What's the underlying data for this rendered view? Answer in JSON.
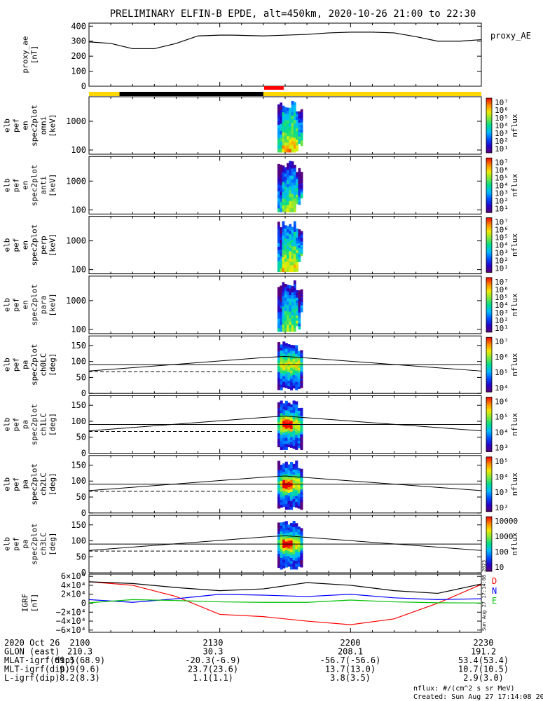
{
  "title": "PRELIMINARY ELFIN-B EPDE, alt=450km, 2020-10-26 21:00 to 22:30",
  "colors": {
    "axis": "#000000",
    "orbit_bar_yellow": "#ffd700",
    "orbit_bar_black": "#000000",
    "science_bar_red": "#ff0000",
    "ae_line": "#000000",
    "igrf_d": "#ff0000",
    "igrf_n": "#0000ff",
    "igrf_e": "#00c000",
    "igrf_total": "#000000"
  },
  "chart_data": [
    {
      "id": "proxy_ae",
      "type": "line",
      "ylabel": [
        "proxy_ae",
        "[nT]"
      ],
      "legend": "proxy_AE",
      "yticks": [
        "400",
        "300",
        "200",
        "100",
        "0"
      ],
      "ylim": [
        0,
        420
      ],
      "x_minutes": [
        0,
        5,
        10,
        15,
        20,
        25,
        30,
        33,
        40,
        50,
        55,
        60,
        65,
        70,
        75,
        80,
        85,
        90
      ],
      "values": [
        295,
        285,
        250,
        250,
        285,
        335,
        340,
        340,
        335,
        345,
        355,
        360,
        360,
        355,
        330,
        300,
        300,
        310
      ]
    },
    {
      "id": "orbit_bar",
      "type": "bar",
      "segments": [
        {
          "from": 0,
          "to": 7,
          "color": "yellow"
        },
        {
          "from": 7,
          "to": 40,
          "color": "black"
        },
        {
          "from": 40,
          "to": 90,
          "color": "yellow"
        }
      ],
      "science_segments": [
        {
          "from": 40,
          "to": 44.5
        }
      ]
    },
    {
      "id": "en_omni",
      "type": "heatmap",
      "ylabel": [
        "elb",
        "pef",
        "en",
        "spec2plot",
        "omni",
        "[keV]"
      ],
      "yticks": [
        "1000",
        "100"
      ],
      "ylog": true,
      "colorbar_label": "nflux",
      "colorbar_ticks": [
        "10⁷",
        "10⁶",
        "10⁵",
        "10⁴",
        "10³",
        "10²",
        "10¹"
      ]
    },
    {
      "id": "en_anti",
      "type": "heatmap",
      "ylabel": [
        "elb",
        "pef",
        "en",
        "spec2plot",
        "anti",
        "[keV]"
      ],
      "yticks": [
        "1000",
        "100"
      ],
      "ylog": true,
      "colorbar_label": "nflux",
      "colorbar_ticks": [
        "10⁷",
        "10⁶",
        "10⁵",
        "10⁴",
        "10³",
        "10²",
        "10¹"
      ]
    },
    {
      "id": "en_perp",
      "type": "heatmap",
      "ylabel": [
        "elb",
        "pef",
        "en",
        "spec2plot",
        "perp",
        "[keV]"
      ],
      "yticks": [
        "1000",
        "100"
      ],
      "ylog": true,
      "colorbar_label": "nflux",
      "colorbar_ticks": [
        "10⁷",
        "10⁶",
        "10⁵",
        "10⁴",
        "10³",
        "10²",
        "10¹"
      ]
    },
    {
      "id": "en_para",
      "type": "heatmap",
      "ylabel": [
        "elb",
        "pef",
        "en",
        "spec2plot",
        "para",
        "[keV]"
      ],
      "yticks": [
        "1000",
        "100"
      ],
      "ylog": true,
      "colorbar_label": "nflux",
      "colorbar_ticks": [
        "10⁷",
        "10⁶",
        "10⁵",
        "10⁴",
        "10³",
        "10²",
        "10¹"
      ]
    },
    {
      "id": "pa_ch0",
      "type": "heatmap",
      "ylabel": [
        "elb",
        "pef",
        "pa",
        "spec2plot",
        "ch0LC",
        "[deg]"
      ],
      "yticks": [
        "150",
        "100",
        "50",
        "0"
      ],
      "ylim": [
        0,
        180
      ],
      "colorbar_label": "nflux",
      "colorbar_ticks": [
        "10⁷",
        "10⁶",
        "10⁵",
        "10⁴"
      ]
    },
    {
      "id": "pa_ch1",
      "type": "heatmap",
      "ylabel": [
        "elb",
        "pef",
        "pa",
        "spec2plot",
        "ch1LC",
        "[deg]"
      ],
      "yticks": [
        "150",
        "100",
        "50",
        "0"
      ],
      "ylim": [
        0,
        180
      ],
      "colorbar_label": "nflux",
      "colorbar_ticks": [
        "10⁶",
        "10⁵",
        "10⁴",
        "10³"
      ]
    },
    {
      "id": "pa_ch2",
      "type": "heatmap",
      "ylabel": [
        "elb",
        "pef",
        "pa",
        "spec2plot",
        "ch2LC",
        "[deg]"
      ],
      "yticks": [
        "150",
        "100",
        "50",
        "0"
      ],
      "ylim": [
        0,
        180
      ],
      "colorbar_label": "nflux",
      "colorbar_ticks": [
        "10⁵",
        "10⁴",
        "10³",
        "10²"
      ]
    },
    {
      "id": "pa_ch3",
      "type": "heatmap",
      "ylabel": [
        "elb",
        "pef",
        "pa",
        "spec2plot",
        "ch3LC",
        "[deg]"
      ],
      "yticks": [
        "150",
        "100",
        "50",
        "0"
      ],
      "ylim": [
        0,
        180
      ],
      "colorbar_label": "nflux",
      "colorbar_ticks": [
        "10000",
        "1000",
        "100",
        "10"
      ]
    },
    {
      "id": "igrf",
      "type": "line",
      "ylabel": [
        "IGRF",
        "[nT]"
      ],
      "yticks": [
        "6×10⁴",
        "4×10⁴",
        "2×10⁴",
        "0",
        "−2×10⁴",
        "−4×10⁴",
        "−6×10⁴"
      ],
      "ylim": [
        -65000,
        65000
      ],
      "legend": [
        "D",
        "N",
        "E"
      ],
      "x_minutes": [
        0,
        10,
        20,
        30,
        40,
        50,
        60,
        70,
        80,
        90
      ],
      "series": [
        {
          "name": "D",
          "color": "red",
          "values": [
            48000,
            40000,
            15000,
            -25000,
            -30000,
            -40000,
            -48000,
            -35000,
            0,
            42000
          ]
        },
        {
          "name": "N",
          "color": "blue",
          "values": [
            8000,
            2000,
            10000,
            20000,
            18000,
            15000,
            20000,
            12000,
            8000,
            10000
          ]
        },
        {
          "name": "E",
          "color": "green",
          "values": [
            1000,
            8000,
            6000,
            3000,
            2000,
            2000,
            7000,
            3000,
            1000,
            500
          ]
        },
        {
          "name": "",
          "color": "black",
          "values": [
            48000,
            44000,
            35000,
            28000,
            32000,
            46000,
            40000,
            28000,
            22000,
            43000
          ]
        }
      ]
    }
  ],
  "footer": {
    "rows": [
      {
        "label": "2020 Oct 26",
        "values": [
          "2100",
          "2130",
          "2200",
          "2230"
        ]
      },
      {
        "label": "GLON (east)",
        "values": [
          "210.3",
          "30.3",
          "208.1",
          "191.2"
        ]
      },
      {
        "label": "MLAT-igrf(dip)",
        "values": [
          "69.5(68.9)",
          "-20.3(-6.9)",
          "-56.7(-56.6)",
          "53.4(53.4)"
        ]
      },
      {
        "label": "MLT-igrf(dip)",
        "values": [
          "9.9(9.6)",
          "23.7(23.6)",
          "13.7(13.0)",
          "10.7(10.5)"
        ]
      },
      {
        "label": "L-igrf(dip)",
        "values": [
          "8.2(8.3)",
          "1.1(1.1)",
          "3.8(3.5)",
          "2.9(3.0)"
        ]
      }
    ],
    "unit_note": "nflux: #/(cm^2 s sr MeV)",
    "created": "Created: Sun Aug 27 17:14:08 2023",
    "side_stamp": "Sun Aug 27 17:14:08 2023"
  }
}
